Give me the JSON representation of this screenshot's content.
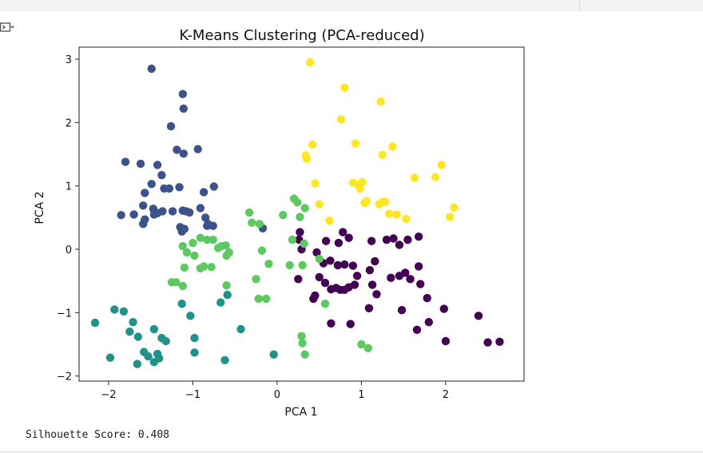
{
  "output": {
    "text": "Silhouette Score: 0.408"
  },
  "icons": {
    "output_toggle": "output-toggle-icon"
  },
  "chart_data": {
    "type": "scatter",
    "title": "K-Means Clustering (PCA-reduced)",
    "xlabel": "PCA 1",
    "ylabel": "PCA 2",
    "xlim": [
      -2.35,
      2.93
    ],
    "ylim": [
      -2.08,
      3.19
    ],
    "xticks": [
      -2,
      -1,
      0,
      1,
      2
    ],
    "yticks": [
      -2,
      -1,
      0,
      1,
      2,
      3
    ],
    "xtick_labels": [
      "−2",
      "−1",
      "0",
      "1",
      "2"
    ],
    "ytick_labels": [
      "−2",
      "−1",
      "0",
      "1",
      "2",
      "3"
    ],
    "grid": false,
    "legend": false,
    "series": [
      {
        "color": "#440154",
        "points": [
          [
            0.27,
            0.27
          ],
          [
            0.26,
            0.15
          ],
          [
            0.29,
            0.0
          ],
          [
            0.58,
            0.13
          ],
          [
            0.73,
            0.1
          ],
          [
            0.85,
            0.18
          ],
          [
            0.78,
            0.27
          ],
          [
            0.47,
            -0.05
          ],
          [
            0.55,
            -0.22
          ],
          [
            0.63,
            -0.18
          ],
          [
            0.72,
            -0.25
          ],
          [
            0.8,
            -0.24
          ],
          [
            0.9,
            -0.26
          ],
          [
            0.5,
            -0.44
          ],
          [
            0.57,
            -0.53
          ],
          [
            0.64,
            -0.63
          ],
          [
            0.7,
            -0.61
          ],
          [
            0.75,
            -0.64
          ],
          [
            0.8,
            -0.64
          ],
          [
            0.85,
            -0.6
          ],
          [
            0.95,
            -0.42
          ],
          [
            0.92,
            -0.56
          ],
          [
            0.25,
            -0.47
          ],
          [
            0.45,
            -0.73
          ],
          [
            0.43,
            -0.78
          ],
          [
            0.64,
            -1.17
          ],
          [
            0.87,
            -1.18
          ],
          [
            1.1,
            -0.33
          ],
          [
            1.16,
            -0.19
          ],
          [
            1.13,
            -0.56
          ],
          [
            1.18,
            -0.71
          ],
          [
            1.09,
            -0.93
          ],
          [
            1.12,
            0.13
          ],
          [
            1.3,
            0.15
          ],
          [
            1.38,
            0.17
          ],
          [
            1.45,
            0.07
          ],
          [
            1.55,
            0.15
          ],
          [
            1.68,
            0.2
          ],
          [
            1.35,
            -0.45
          ],
          [
            1.45,
            -0.42
          ],
          [
            1.52,
            -0.37
          ],
          [
            1.58,
            -0.47
          ],
          [
            1.68,
            -0.27
          ],
          [
            1.7,
            -0.55
          ],
          [
            1.48,
            -0.96
          ],
          [
            1.66,
            -1.27
          ],
          [
            1.8,
            -1.15
          ],
          [
            1.78,
            -0.77
          ],
          [
            1.98,
            -0.94
          ],
          [
            2.0,
            -1.45
          ],
          [
            2.39,
            -1.05
          ],
          [
            2.5,
            -1.47
          ],
          [
            2.64,
            -1.46
          ]
        ]
      },
      {
        "color": "#3b528b",
        "points": [
          [
            -1.49,
            2.85
          ],
          [
            -1.12,
            2.45
          ],
          [
            -1.11,
            2.22
          ],
          [
            -1.26,
            1.94
          ],
          [
            -1.19,
            1.57
          ],
          [
            -1.11,
            1.51
          ],
          [
            -0.94,
            1.58
          ],
          [
            -1.8,
            1.38
          ],
          [
            -1.62,
            1.35
          ],
          [
            -1.42,
            1.33
          ],
          [
            -1.37,
            1.17
          ],
          [
            -1.49,
            1.03
          ],
          [
            -1.57,
            0.89
          ],
          [
            -1.34,
            0.96
          ],
          [
            -1.28,
            0.96
          ],
          [
            -1.16,
            0.98
          ],
          [
            -0.87,
            0.9
          ],
          [
            -0.75,
            0.99
          ],
          [
            -1.85,
            0.54
          ],
          [
            -1.7,
            0.55
          ],
          [
            -1.59,
            0.69
          ],
          [
            -1.47,
            0.64
          ],
          [
            -1.42,
            0.57
          ],
          [
            -1.36,
            0.6
          ],
          [
            -1.24,
            0.6
          ],
          [
            -1.12,
            0.61
          ],
          [
            -1.08,
            0.6
          ],
          [
            -1.04,
            0.58
          ],
          [
            -1.59,
            0.4
          ],
          [
            -1.57,
            0.47
          ],
          [
            -1.46,
            0.55
          ],
          [
            -1.13,
            0.28
          ],
          [
            -1.15,
            0.35
          ],
          [
            -1.1,
            0.32
          ],
          [
            -0.91,
            0.65
          ],
          [
            -0.82,
            0.4
          ],
          [
            -0.83,
            0.37
          ],
          [
            -0.76,
            0.37
          ],
          [
            -0.85,
            0.5
          ],
          [
            -0.17,
            0.33
          ]
        ]
      },
      {
        "color": "#21918c",
        "points": [
          [
            -2.16,
            -1.16
          ],
          [
            -1.93,
            -0.95
          ],
          [
            -1.82,
            -0.98
          ],
          [
            -1.75,
            -1.3
          ],
          [
            -1.71,
            -1.15
          ],
          [
            -1.65,
            -1.38
          ],
          [
            -1.58,
            -1.62
          ],
          [
            -1.46,
            -1.26
          ],
          [
            -1.37,
            -1.4
          ],
          [
            -1.32,
            -1.45
          ],
          [
            -1.42,
            -1.65
          ],
          [
            -1.4,
            -1.72
          ],
          [
            -1.46,
            -1.78
          ],
          [
            -1.53,
            -1.69
          ],
          [
            -1.66,
            -1.81
          ],
          [
            -1.98,
            -1.71
          ],
          [
            -1.13,
            -0.86
          ],
          [
            -1.03,
            -1.05
          ],
          [
            -0.98,
            -1.4
          ],
          [
            -0.98,
            -1.63
          ],
          [
            -0.67,
            -0.84
          ],
          [
            -0.59,
            -0.72
          ],
          [
            -0.43,
            -1.26
          ],
          [
            -0.62,
            -1.75
          ],
          [
            -0.04,
            -1.66
          ]
        ]
      },
      {
        "color": "#5ec962",
        "points": [
          [
            -1.12,
            0.05
          ],
          [
            -1.0,
            0.1
          ],
          [
            -0.91,
            0.18
          ],
          [
            -0.83,
            0.15
          ],
          [
            -0.76,
            0.15
          ],
          [
            -0.7,
            0.02
          ],
          [
            -0.66,
            0.05
          ],
          [
            -0.61,
            0.06
          ],
          [
            -0.57,
            -0.05
          ],
          [
            -0.6,
            -0.1
          ],
          [
            -0.98,
            -0.1
          ],
          [
            -0.91,
            -0.3
          ],
          [
            -1.07,
            -0.05
          ],
          [
            -1.1,
            -0.29
          ],
          [
            -1.25,
            -0.52
          ],
          [
            -1.2,
            -0.52
          ],
          [
            -1.12,
            -0.58
          ],
          [
            -0.87,
            -0.27
          ],
          [
            -0.78,
            -0.28
          ],
          [
            -0.33,
            0.58
          ],
          [
            -0.3,
            0.42
          ],
          [
            -0.21,
            0.4
          ],
          [
            -0.18,
            -0.02
          ],
          [
            -0.25,
            -0.47
          ],
          [
            -0.22,
            -0.78
          ],
          [
            -0.13,
            -0.78
          ],
          [
            -0.6,
            -0.57
          ],
          [
            -0.1,
            -0.23
          ],
          [
            0.15,
            -0.25
          ],
          [
            0.24,
            0.74
          ],
          [
            0.2,
            0.8
          ],
          [
            0.07,
            0.54
          ],
          [
            0.33,
            0.65
          ],
          [
            0.27,
            0.51
          ],
          [
            0.18,
            0.15
          ],
          [
            0.32,
            0.09
          ],
          [
            0.3,
            -0.25
          ],
          [
            0.5,
            -0.15
          ],
          [
            0.57,
            -0.86
          ],
          [
            0.29,
            -1.37
          ],
          [
            0.3,
            -1.48
          ],
          [
            0.33,
            -1.66
          ],
          [
            1.0,
            -1.5
          ],
          [
            1.08,
            -1.56
          ]
        ]
      },
      {
        "color": "#fde725",
        "points": [
          [
            0.39,
            2.95
          ],
          [
            0.8,
            2.55
          ],
          [
            1.23,
            2.33
          ],
          [
            0.76,
            2.05
          ],
          [
            0.93,
            1.67
          ],
          [
            0.42,
            1.65
          ],
          [
            1.37,
            1.62
          ],
          [
            0.34,
            1.48
          ],
          [
            0.35,
            1.43
          ],
          [
            1.25,
            1.49
          ],
          [
            1.95,
            1.33
          ],
          [
            1.88,
            1.14
          ],
          [
            1.63,
            1.13
          ],
          [
            0.45,
            1.04
          ],
          [
            0.9,
            1.05
          ],
          [
            0.96,
            1.02
          ],
          [
            1.01,
            1.06
          ],
          [
            0.98,
            0.96
          ],
          [
            1.04,
            0.73
          ],
          [
            1.06,
            0.76
          ],
          [
            1.24,
            0.74
          ],
          [
            1.28,
            0.75
          ],
          [
            1.21,
            0.71
          ],
          [
            1.33,
            0.56
          ],
          [
            1.42,
            0.55
          ],
          [
            1.53,
            0.48
          ],
          [
            2.05,
            0.51
          ],
          [
            2.1,
            0.66
          ],
          [
            0.5,
            0.71
          ],
          [
            0.62,
            0.45
          ]
        ]
      }
    ]
  }
}
